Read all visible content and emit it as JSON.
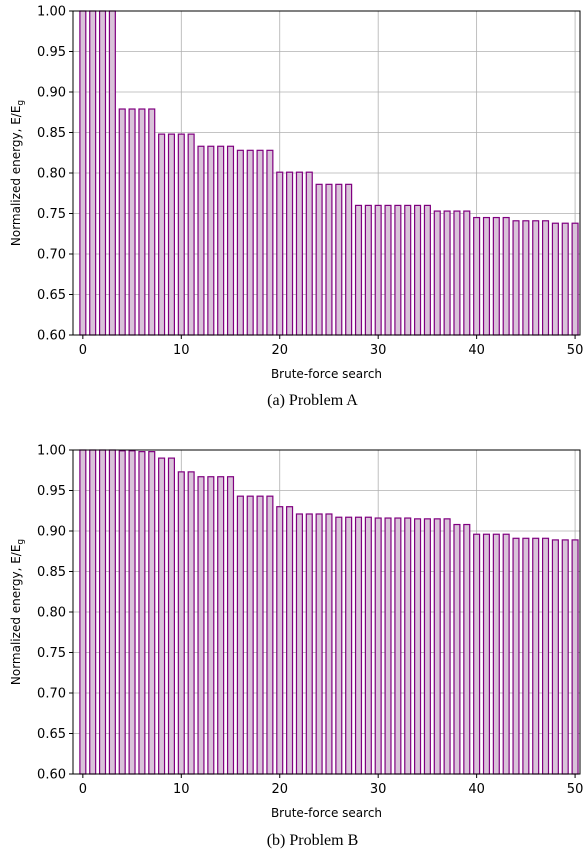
{
  "chart_data": [
    {
      "type": "bar",
      "caption": "(a) Problem A",
      "xlabel": "Brute-force search",
      "ylabel": "Normalized energy, E/E",
      "ylabel_sub": "g",
      "xlim": [
        -1,
        50.5
      ],
      "ylim": [
        0.6,
        1.0
      ],
      "xticks": [
        0,
        10,
        20,
        30,
        40,
        50
      ],
      "yticks": [
        0.6,
        0.65,
        0.7,
        0.75,
        0.8,
        0.85,
        0.9,
        0.95,
        1.0
      ],
      "ytick_labels": [
        "0.60",
        "0.65",
        "0.70",
        "0.75",
        "0.80",
        "0.85",
        "0.90",
        "0.95",
        "1.00"
      ],
      "grid": true,
      "bar_fill": "#d9c3d9",
      "bar_edge": "#800080",
      "x": [
        0,
        1,
        2,
        3,
        4,
        5,
        6,
        7,
        8,
        9,
        10,
        11,
        12,
        13,
        14,
        15,
        16,
        17,
        18,
        19,
        20,
        21,
        22,
        23,
        24,
        25,
        26,
        27,
        28,
        29,
        30,
        31,
        32,
        33,
        34,
        35,
        36,
        37,
        38,
        39,
        40,
        41,
        42,
        43,
        44,
        45,
        46,
        47,
        48,
        49,
        50
      ],
      "values": [
        1.0,
        1.0,
        1.0,
        1.0,
        0.879,
        0.879,
        0.879,
        0.879,
        0.848,
        0.848,
        0.848,
        0.848,
        0.833,
        0.833,
        0.833,
        0.833,
        0.828,
        0.828,
        0.828,
        0.828,
        0.801,
        0.801,
        0.801,
        0.801,
        0.786,
        0.786,
        0.786,
        0.786,
        0.76,
        0.76,
        0.76,
        0.76,
        0.76,
        0.76,
        0.76,
        0.76,
        0.753,
        0.753,
        0.753,
        0.753,
        0.745,
        0.745,
        0.745,
        0.745,
        0.741,
        0.741,
        0.741,
        0.741,
        0.738,
        0.738,
        0.738
      ]
    },
    {
      "type": "bar",
      "caption": "(b) Problem B",
      "xlabel": "Brute-force search",
      "ylabel": "Normalized energy, E/E",
      "ylabel_sub": "g",
      "xlim": [
        -1,
        50.5
      ],
      "ylim": [
        0.6,
        1.0
      ],
      "xticks": [
        0,
        10,
        20,
        30,
        40,
        50
      ],
      "yticks": [
        0.6,
        0.65,
        0.7,
        0.75,
        0.8,
        0.85,
        0.9,
        0.95,
        1.0
      ],
      "ytick_labels": [
        "0.60",
        "0.65",
        "0.70",
        "0.75",
        "0.80",
        "0.85",
        "0.90",
        "0.95",
        "1.00"
      ],
      "grid": true,
      "bar_fill": "#d9c3d9",
      "bar_edge": "#800080",
      "x": [
        0,
        1,
        2,
        3,
        4,
        5,
        6,
        7,
        8,
        9,
        10,
        11,
        12,
        13,
        14,
        15,
        16,
        17,
        18,
        19,
        20,
        21,
        22,
        23,
        24,
        25,
        26,
        27,
        28,
        29,
        30,
        31,
        32,
        33,
        34,
        35,
        36,
        37,
        38,
        39,
        40,
        41,
        42,
        43,
        44,
        45,
        46,
        47,
        48,
        49,
        50
      ],
      "values": [
        1.0,
        1.0,
        1.0,
        1.0,
        0.999,
        0.999,
        0.998,
        0.998,
        0.99,
        0.99,
        0.973,
        0.973,
        0.967,
        0.967,
        0.967,
        0.967,
        0.943,
        0.943,
        0.943,
        0.943,
        0.93,
        0.93,
        0.921,
        0.921,
        0.921,
        0.921,
        0.917,
        0.917,
        0.917,
        0.917,
        0.916,
        0.916,
        0.916,
        0.916,
        0.915,
        0.915,
        0.915,
        0.915,
        0.908,
        0.908,
        0.896,
        0.896,
        0.896,
        0.896,
        0.891,
        0.891,
        0.891,
        0.891,
        0.889,
        0.889,
        0.889
      ]
    }
  ]
}
